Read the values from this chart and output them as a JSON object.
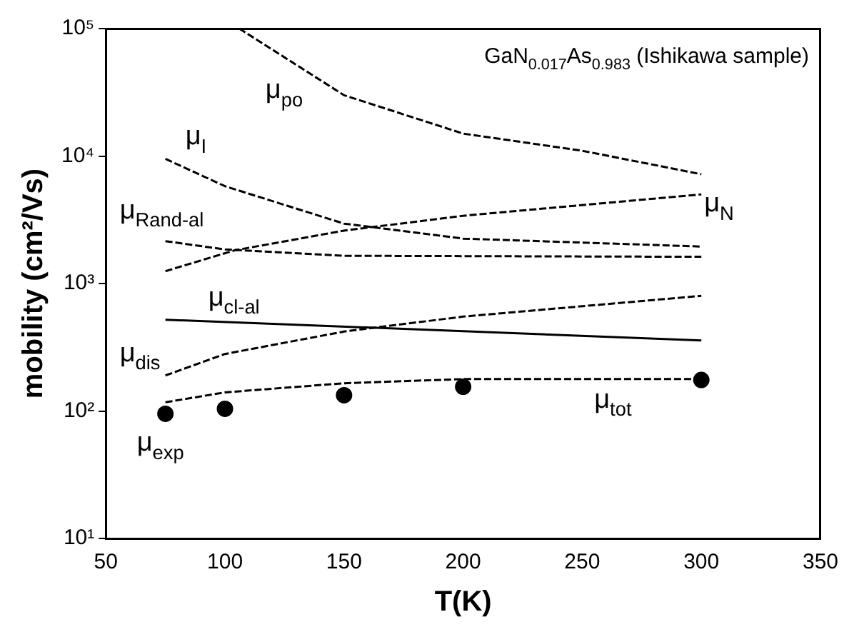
{
  "chart_data": {
    "type": "line",
    "xlabel": "T(K)",
    "ylabel": "mobility (cm²/Vs)",
    "log": "y",
    "grid": false,
    "legend": false,
    "xlim": [
      50,
      350
    ],
    "xticks": [
      50,
      100,
      150,
      200,
      250,
      300,
      350
    ],
    "ylim": [
      10,
      100000
    ],
    "yticks": [
      {
        "value": 10,
        "label": "10¹"
      },
      {
        "value": 100,
        "label": "10²"
      },
      {
        "value": 1000,
        "label": "10³"
      },
      {
        "value": 10000,
        "label": "10⁴"
      },
      {
        "value": 100000,
        "label": "10⁵"
      }
    ],
    "annotations": [
      "GaN$_{0.017}$As$_{0.983}$ (Ishikawa sample)"
    ],
    "series": [
      {
        "name": "μ$_{po}$",
        "color": "#000000",
        "line_style": "dashed",
        "marker": "none",
        "x": [
          106,
          150,
          200,
          250,
          300
        ],
        "values": [
          100000,
          30000,
          15000,
          11000,
          7200
        ]
      },
      {
        "name": "μ$_{I}$",
        "color": "#000000",
        "line_style": "dashed",
        "marker": "none",
        "x": [
          75,
          100,
          150,
          200,
          300
        ],
        "values": [
          9500,
          5800,
          2950,
          2250,
          1950
        ]
      },
      {
        "name": "μ$_{Rand-al}$",
        "color": "#000000",
        "line_style": "dashed",
        "marker": "none",
        "x": [
          75,
          100,
          150,
          300
        ],
        "values": [
          2150,
          1850,
          1650,
          1620
        ]
      },
      {
        "name": "μ$_{N}$",
        "color": "#000000",
        "line_style": "dashed",
        "marker": "none",
        "x": [
          75,
          104,
          150,
          200,
          300
        ],
        "values": [
          1250,
          1820,
          2600,
          3400,
          5000
        ]
      },
      {
        "name": "μ$_{cl-al}$",
        "color": "#000000",
        "line_style": "solid",
        "marker": "none",
        "x": [
          75,
          300
        ],
        "values": [
          520,
          358
        ]
      },
      {
        "name": "μ$_{dis}$",
        "color": "#000000",
        "line_style": "dashed",
        "marker": "none",
        "x": [
          75,
          100,
          150,
          200,
          300
        ],
        "values": [
          190,
          280,
          420,
          550,
          800
        ]
      },
      {
        "name": "μ$_{tot}$",
        "color": "#000000",
        "line_style": "dashed",
        "marker": "none",
        "x": [
          75,
          100,
          150,
          200,
          300
        ],
        "values": [
          117,
          140,
          165,
          178,
          178
        ]
      },
      {
        "name": "μ$_{exp}$",
        "type": "scatter",
        "color": "#000000",
        "marker": "circle",
        "x": [
          75,
          100,
          150,
          200,
          300
        ],
        "values": [
          95,
          104,
          133,
          155,
          175
        ]
      }
    ]
  }
}
